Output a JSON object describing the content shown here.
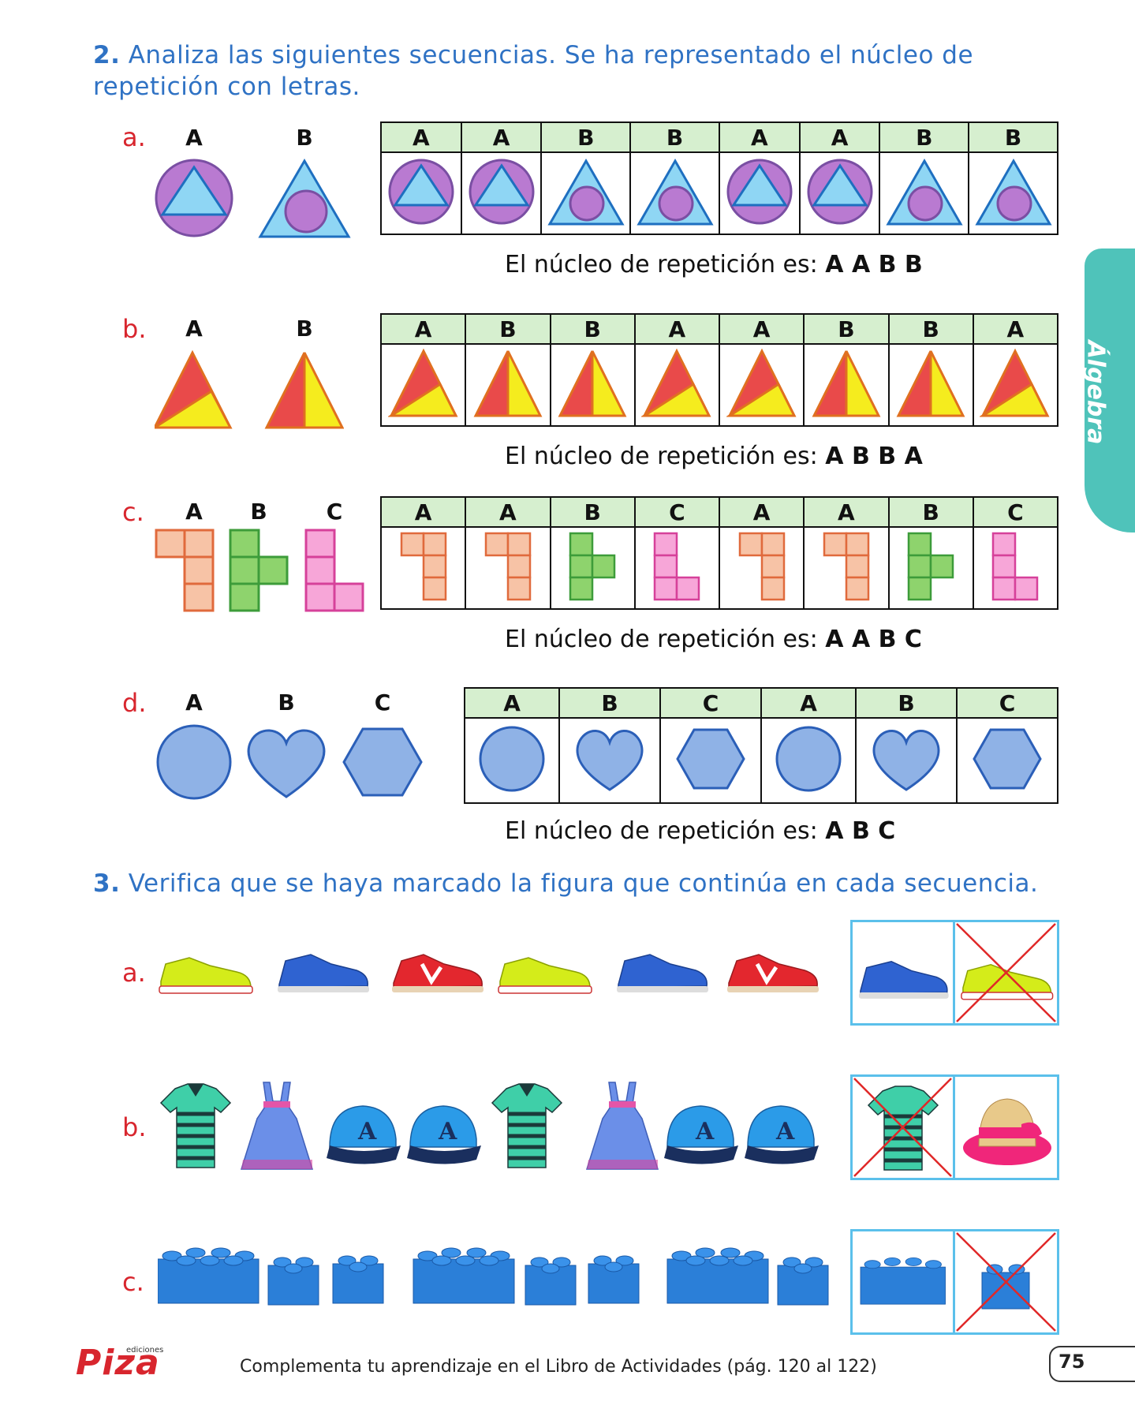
{
  "q2": {
    "number": "2.",
    "text": "Analiza las siguientes secuencias. Se ha representado el núcleo de repetición con letras.",
    "nucleus_label": "El núcleo de repetición es:",
    "a": {
      "label": "a.",
      "keys": [
        "A",
        "B"
      ],
      "headers": [
        "A",
        "A",
        "B",
        "B",
        "A",
        "A",
        "B",
        "B"
      ],
      "nucleus": "A A B B"
    },
    "b": {
      "label": "b.",
      "keys": [
        "A",
        "B"
      ],
      "headers": [
        "A",
        "B",
        "B",
        "A",
        "A",
        "B",
        "B",
        "A"
      ],
      "nucleus": "A B B A"
    },
    "c": {
      "label": "c.",
      "keys": [
        "A",
        "B",
        "C"
      ],
      "headers": [
        "A",
        "A",
        "B",
        "C",
        "A",
        "A",
        "B",
        "C"
      ],
      "nucleus": "A A B C"
    },
    "d": {
      "label": "d.",
      "keys": [
        "A",
        "B",
        "C"
      ],
      "headers": [
        "A",
        "B",
        "C",
        "A",
        "B",
        "C"
      ],
      "nucleus": "A B C"
    }
  },
  "q3": {
    "number": "3.",
    "text": "Verifica que se haya marcado la figura que continúa en cada secuencia.",
    "a": {
      "label": "a."
    },
    "b": {
      "label": "b."
    },
    "c": {
      "label": "c."
    }
  },
  "side_tab": "Álgebra",
  "footer": {
    "text": "Complementa tu aprendizaje en el Libro de Actividades (pág. 120 al 122)",
    "page_number": "75",
    "logo": "Piza",
    "logo_small": "ediciones"
  },
  "colors": {
    "blue_text": "#2f72c4",
    "red_label": "#d8262e",
    "header_green": "#d6efcf",
    "tab_teal": "#4fc3ba"
  }
}
